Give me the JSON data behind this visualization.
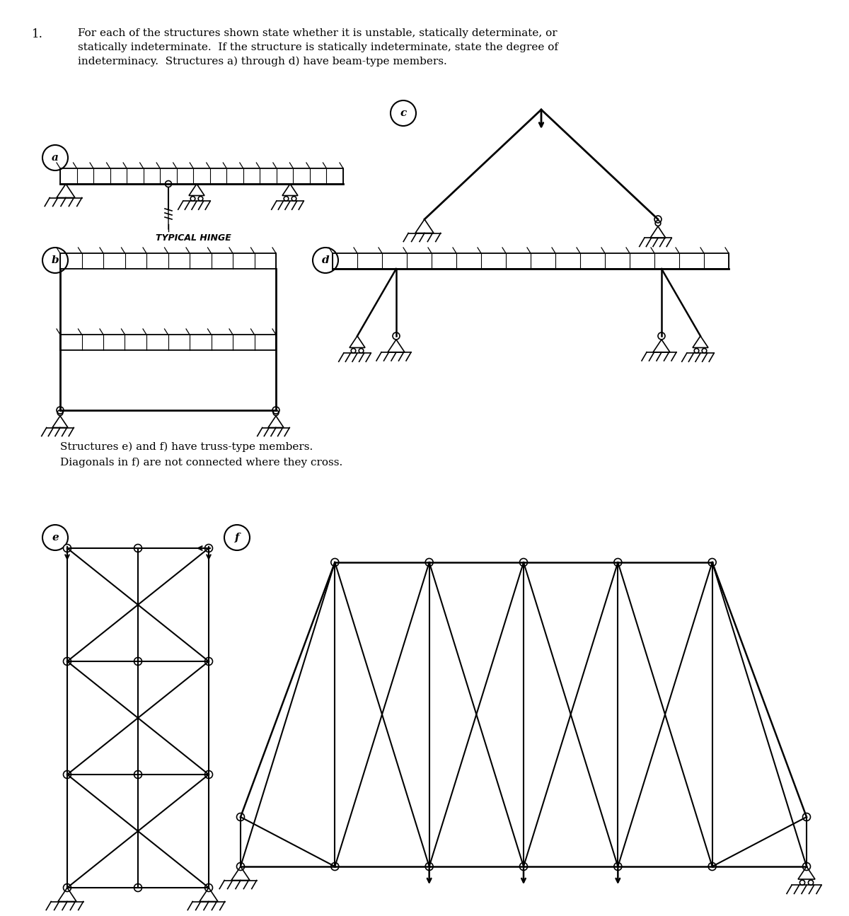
{
  "title_number": "1.",
  "title_text": "For each of the structures shown state whether it is unstable, statically determinate, or\nstatically indeterminate.  If the structure is statically indeterminate, state the degree of\nindeterminacy.  Structures a) through d) have beam-type members.",
  "mid_text": "Structures e) and f) have truss-type members.\nDiagonals in f) are not connected where they cross.",
  "bg_color": "#ffffff",
  "line_color": "#000000",
  "label_a": "a",
  "label_b": "b",
  "label_c": "c",
  "label_d": "d",
  "label_e": "e",
  "label_f": "f"
}
